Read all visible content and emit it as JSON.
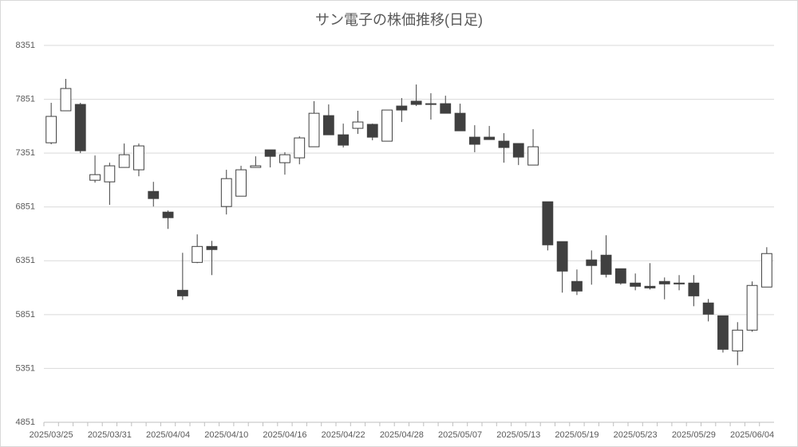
{
  "chart_data": {
    "type": "candlestick",
    "title": "サン電子の株価推移(日足)",
    "categories": [
      "2025/03/25",
      null,
      null,
      null,
      "2025/03/31",
      null,
      null,
      null,
      "2025/04/04",
      null,
      null,
      null,
      "2025/04/10",
      null,
      null,
      null,
      "2025/04/16",
      null,
      null,
      null,
      "2025/04/22",
      null,
      null,
      null,
      "2025/04/28",
      null,
      null,
      null,
      "2025/05/07",
      null,
      null,
      null,
      "2025/05/13",
      null,
      null,
      null,
      "2025/05/19",
      null,
      null,
      null,
      "2025/05/23",
      null,
      null,
      null,
      "2025/05/29",
      null,
      null,
      null,
      "2025/06/04",
      null
    ],
    "open": [
      7447,
      7744,
      7803,
      7099,
      7084,
      7218,
      7196,
      6995,
      6803,
      6077,
      6336,
      6484,
      6855,
      6951,
      7218,
      7381,
      7262,
      7307,
      7410,
      7699,
      7521,
      7581,
      7618,
      7462,
      7788,
      7833,
      7810,
      7810,
      7721,
      7499,
      7499,
      7462,
      7440,
      7240,
      6899,
      6529,
      6159,
      6359,
      6403,
      6277,
      6144,
      6114,
      6159,
      6144,
      6144,
      5959,
      5840,
      5514,
      5707,
      6107
    ],
    "high": [
      7818,
      8040,
      7818,
      7329,
      7262,
      7440,
      7440,
      7084,
      6818,
      6425,
      6596,
      6536,
      7196,
      7233,
      7321,
      7381,
      7359,
      7507,
      7833,
      7803,
      7625,
      7744,
      7625,
      7751,
      7862,
      7988,
      7907,
      7884,
      7810,
      7610,
      7603,
      7536,
      7440,
      7573,
      6899,
      6529,
      6270,
      6447,
      6588,
      6277,
      6233,
      6329,
      6196,
      6218,
      6218,
      5996,
      5840,
      5781,
      6159,
      6477
    ],
    "low": [
      7433,
      7744,
      7351,
      7077,
      6870,
      7218,
      7136,
      6855,
      6647,
      5988,
      6329,
      6218,
      6781,
      6951,
      7218,
      7218,
      7151,
      7247,
      7410,
      7521,
      7403,
      7529,
      7470,
      7462,
      7640,
      7788,
      7662,
      7721,
      7558,
      7359,
      7477,
      7262,
      7240,
      7240,
      6447,
      6055,
      6033,
      6129,
      6196,
      6129,
      6077,
      6084,
      5993,
      6077,
      5929,
      5788,
      5499,
      5381,
      5692,
      6107
    ],
    "close": [
      7692,
      7951,
      7373,
      7151,
      7233,
      7336,
      7418,
      6929,
      6751,
      6025,
      6484,
      6455,
      7114,
      7196,
      7233,
      7321,
      7336,
      7492,
      7721,
      7521,
      7425,
      7640,
      7499,
      7751,
      7751,
      7803,
      7803,
      7721,
      7558,
      7433,
      7477,
      7403,
      7314,
      7410,
      6499,
      6255,
      6070,
      6307,
      6225,
      6144,
      6114,
      6099,
      6136,
      6136,
      6025,
      5855,
      5529,
      5707,
      6122,
      6418
    ],
    "up_color": "#ffffff",
    "down_color": "#404040",
    "ylim": [
      4851,
      8351
    ],
    "yticks": [
      4851,
      5351,
      5851,
      6351,
      6851,
      7351,
      7851,
      8351
    ],
    "grid": true
  }
}
